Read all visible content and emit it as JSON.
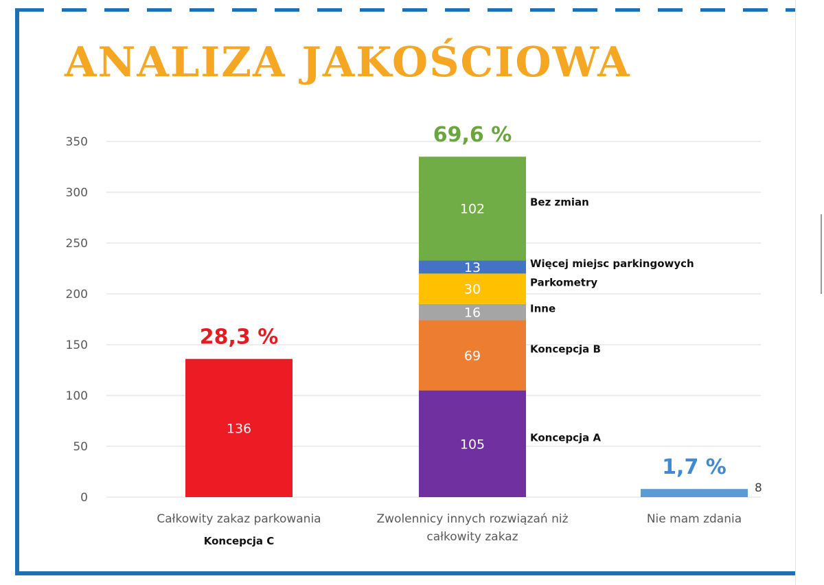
{
  "title": "ANALIZA JAKOŚCIOWA",
  "colors": {
    "frame": "#1f6fb5",
    "title": "#f5a623",
    "grid": "#d9d9d9",
    "axis_text": "#595959"
  },
  "chart_data": {
    "type": "bar",
    "stacked": true,
    "ylim": [
      0,
      350
    ],
    "yticks": [
      0,
      50,
      100,
      150,
      200,
      250,
      300,
      350
    ],
    "grid": true,
    "categories": [
      {
        "label": "Całkowity zakaz parkowania",
        "sublabel": "Koncepcja C",
        "percent": "28,3 %",
        "percent_color": "#e31b23",
        "segments": [
          {
            "name": "",
            "value": 136,
            "color": "#ed1c24"
          }
        ]
      },
      {
        "label": "Zwolennicy innych rozwiązań niż całkowity zakaz",
        "percent": "69,6 %",
        "percent_color": "#6aa53f",
        "segments": [
          {
            "name": "Koncepcja A",
            "value": 105,
            "color": "#7030a0"
          },
          {
            "name": "Koncepcja B",
            "value": 69,
            "color": "#ed7d31"
          },
          {
            "name": "Inne",
            "value": 16,
            "color": "#a5a5a5"
          },
          {
            "name": "Parkometry",
            "value": 30,
            "color": "#ffc000"
          },
          {
            "name": "Więcej miejsc parkingowych",
            "value": 13,
            "color": "#4472c4"
          },
          {
            "name": "Bez zmian",
            "value": 102,
            "color": "#70ad47"
          }
        ]
      },
      {
        "label": "Nie mam zdania",
        "percent": "1,7 %",
        "percent_color": "#3f8ad3",
        "segments": [
          {
            "name": "",
            "value": 8,
            "color": "#5b9bd5"
          }
        ]
      }
    ]
  }
}
